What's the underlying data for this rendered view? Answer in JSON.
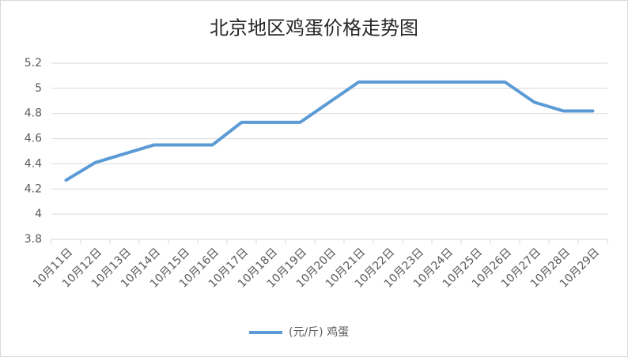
{
  "chart_data": {
    "type": "line",
    "title": "北京地区鸡蛋价格走势图",
    "categories": [
      "10月11日",
      "10月12日",
      "10月13日",
      "10月14日",
      "10月15日",
      "10月16日",
      "10月17日",
      "10月18日",
      "10月19日",
      "10月20日",
      "10月21日",
      "10月22日",
      "10月23日",
      "10月24日",
      "10月25日",
      "10月26日",
      "10月27日",
      "10月28日",
      "10月29日"
    ],
    "series": [
      {
        "name": "(元/斤) 鸡蛋",
        "color": "#5b9bd5",
        "values": [
          4.27,
          4.41,
          4.48,
          4.55,
          4.55,
          4.55,
          4.73,
          4.73,
          4.73,
          4.89,
          5.05,
          5.05,
          5.05,
          5.05,
          5.05,
          5.05,
          4.89,
          4.82,
          4.82
        ]
      }
    ],
    "ylim": [
      3.8,
      5.2
    ],
    "yticks": [
      3.8,
      4,
      4.2,
      4.4,
      4.6,
      4.8,
      5,
      5.2
    ],
    "grid": true,
    "legend": "bottom"
  }
}
